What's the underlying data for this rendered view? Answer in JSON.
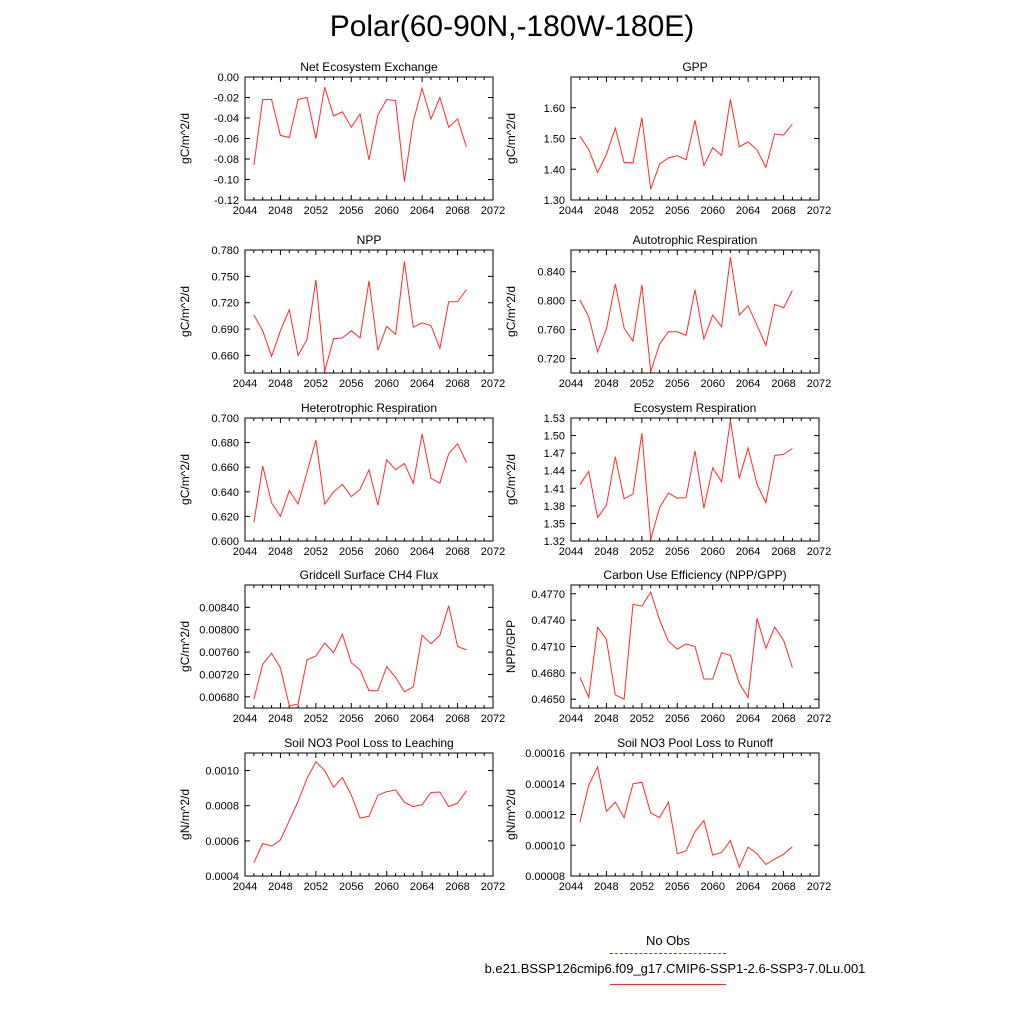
{
  "page": {
    "title": "Polar(60-90N,-180W-180E)"
  },
  "legend": {
    "obs_label": "No Obs",
    "model_label": "b.e21.BSSP126cmip6.f09_g17.CMIP6-SSP1-2.6-SSP3-7.0Lu.001",
    "obs_color": "#4b4bd1",
    "model_color": "#ff2a2a"
  },
  "chart_data": [
    {
      "type": "line",
      "title": "Net Ecosystem Exchange",
      "ylabel": "gC/m^2/d",
      "xlim": [
        2044,
        2072
      ],
      "ylim": [
        -0.12,
        0.0
      ],
      "xticks": [
        "2044",
        "2048",
        "2052",
        "2056",
        "2060",
        "2064",
        "2068",
        "2072"
      ],
      "yticks": [
        {
          "v": 0.0,
          "label": "0.00"
        },
        {
          "v": -0.02,
          "label": "-0.02"
        },
        {
          "v": -0.04,
          "label": "-0.04"
        },
        {
          "v": -0.06,
          "label": "-0.06"
        },
        {
          "v": -0.08,
          "label": "-0.08"
        },
        {
          "v": -0.1,
          "label": "-0.10"
        },
        {
          "v": -0.12,
          "label": "-0.12"
        }
      ],
      "x": [
        2045,
        2046,
        2047,
        2048,
        2049,
        2050,
        2051,
        2052,
        2053,
        2054,
        2055,
        2056,
        2057,
        2058,
        2059,
        2060,
        2061,
        2062,
        2063,
        2064,
        2065,
        2066,
        2067,
        2068,
        2069
      ],
      "y": [
        -0.086,
        -0.022,
        -0.022,
        -0.057,
        -0.059,
        -0.022,
        -0.02,
        -0.06,
        -0.01,
        -0.038,
        -0.034,
        -0.049,
        -0.036,
        -0.081,
        -0.037,
        -0.022,
        -0.023,
        -0.102,
        -0.043,
        -0.011,
        -0.041,
        -0.02,
        -0.049,
        -0.041,
        -0.068
      ]
    },
    {
      "type": "line",
      "title": "GPP",
      "ylabel": "gC/m^2/d",
      "xlim": [
        2044,
        2072
      ],
      "ylim": [
        1.3,
        1.7
      ],
      "xticks": [
        "2044",
        "2048",
        "2052",
        "2056",
        "2060",
        "2064",
        "2068",
        "2072"
      ],
      "yticks": [
        {
          "v": 1.3,
          "label": "1.30"
        },
        {
          "v": 1.4,
          "label": "1.40"
        },
        {
          "v": 1.5,
          "label": "1.50"
        },
        {
          "v": 1.6,
          "label": "1.60"
        }
      ],
      "x": [
        2045,
        2046,
        2047,
        2048,
        2049,
        2050,
        2051,
        2052,
        2053,
        2054,
        2055,
        2056,
        2057,
        2058,
        2059,
        2060,
        2061,
        2062,
        2063,
        2064,
        2065,
        2066,
        2067,
        2068,
        2069
      ],
      "y": [
        1.507,
        1.465,
        1.389,
        1.448,
        1.534,
        1.422,
        1.421,
        1.568,
        1.335,
        1.417,
        1.437,
        1.444,
        1.431,
        1.559,
        1.412,
        1.47,
        1.445,
        1.627,
        1.473,
        1.489,
        1.463,
        1.406,
        1.515,
        1.511,
        1.547
      ]
    },
    {
      "type": "line",
      "title": "NPP",
      "ylabel": "gC/m^2/d",
      "xlim": [
        2044,
        2072
      ],
      "ylim": [
        0.64,
        0.78
      ],
      "xticks": [
        "2044",
        "2048",
        "2052",
        "2056",
        "2060",
        "2064",
        "2068",
        "2072"
      ],
      "yticks": [
        {
          "v": 0.66,
          "label": "0.660"
        },
        {
          "v": 0.69,
          "label": "0.690"
        },
        {
          "v": 0.72,
          "label": "0.720"
        },
        {
          "v": 0.75,
          "label": "0.750"
        },
        {
          "v": 0.78,
          "label": "0.780"
        }
      ],
      "x": [
        2045,
        2046,
        2047,
        2048,
        2049,
        2050,
        2051,
        2052,
        2053,
        2054,
        2055,
        2056,
        2057,
        2058,
        2059,
        2060,
        2061,
        2062,
        2063,
        2064,
        2065,
        2066,
        2067,
        2068,
        2069
      ],
      "y": [
        0.706,
        0.688,
        0.659,
        0.688,
        0.712,
        0.66,
        0.678,
        0.746,
        0.642,
        0.679,
        0.68,
        0.688,
        0.68,
        0.745,
        0.666,
        0.693,
        0.684,
        0.767,
        0.692,
        0.697,
        0.694,
        0.668,
        0.721,
        0.721,
        0.735
      ]
    },
    {
      "type": "line",
      "title": "Autotrophic Respiration",
      "ylabel": "gC/m^2/d",
      "xlim": [
        2044,
        2072
      ],
      "ylim": [
        0.7,
        0.87
      ],
      "xticks": [
        "2044",
        "2048",
        "2052",
        "2056",
        "2060",
        "2064",
        "2068",
        "2072"
      ],
      "yticks": [
        {
          "v": 0.72,
          "label": "0.720"
        },
        {
          "v": 0.76,
          "label": "0.760"
        },
        {
          "v": 0.8,
          "label": "0.800"
        },
        {
          "v": 0.84,
          "label": "0.840"
        }
      ],
      "x": [
        2045,
        2046,
        2047,
        2048,
        2049,
        2050,
        2051,
        2052,
        2053,
        2054,
        2055,
        2056,
        2057,
        2058,
        2059,
        2060,
        2061,
        2062,
        2063,
        2064,
        2065,
        2066,
        2067,
        2068,
        2069
      ],
      "y": [
        0.801,
        0.778,
        0.729,
        0.761,
        0.823,
        0.762,
        0.744,
        0.822,
        0.702,
        0.74,
        0.757,
        0.757,
        0.752,
        0.815,
        0.747,
        0.78,
        0.764,
        0.86,
        0.78,
        0.793,
        0.766,
        0.738,
        0.795,
        0.79,
        0.814
      ]
    },
    {
      "type": "line",
      "title": "Heterotrophic Respiration",
      "ylabel": "gC/m^2/d",
      "xlim": [
        2044,
        2072
      ],
      "ylim": [
        0.6,
        0.7
      ],
      "xticks": [
        "2044",
        "2048",
        "2052",
        "2056",
        "2060",
        "2064",
        "2068",
        "2072"
      ],
      "yticks": [
        {
          "v": 0.6,
          "label": "0.600"
        },
        {
          "v": 0.62,
          "label": "0.620"
        },
        {
          "v": 0.64,
          "label": "0.640"
        },
        {
          "v": 0.66,
          "label": "0.660"
        },
        {
          "v": 0.68,
          "label": "0.680"
        },
        {
          "v": 0.7,
          "label": "0.700"
        }
      ],
      "x": [
        2045,
        2046,
        2047,
        2048,
        2049,
        2050,
        2051,
        2052,
        2053,
        2054,
        2055,
        2056,
        2057,
        2058,
        2059,
        2060,
        2061,
        2062,
        2063,
        2064,
        2065,
        2066,
        2067,
        2068,
        2069
      ],
      "y": [
        0.615,
        0.661,
        0.631,
        0.62,
        0.641,
        0.63,
        0.656,
        0.682,
        0.63,
        0.64,
        0.646,
        0.636,
        0.642,
        0.658,
        0.629,
        0.666,
        0.658,
        0.663,
        0.647,
        0.687,
        0.651,
        0.647,
        0.671,
        0.679,
        0.664
      ]
    },
    {
      "type": "line",
      "title": "Ecosystem Respiration",
      "ylabel": "gC/m^2/d",
      "xlim": [
        2044,
        2072
      ],
      "ylim": [
        1.32,
        1.53
      ],
      "xticks": [
        "2044",
        "2048",
        "2052",
        "2056",
        "2060",
        "2064",
        "2068",
        "2072"
      ],
      "yticks": [
        {
          "v": 1.32,
          "label": "1.32"
        },
        {
          "v": 1.35,
          "label": "1.35"
        },
        {
          "v": 1.38,
          "label": "1.38"
        },
        {
          "v": 1.41,
          "label": "1.41"
        },
        {
          "v": 1.44,
          "label": "1.44"
        },
        {
          "v": 1.47,
          "label": "1.47"
        },
        {
          "v": 1.5,
          "label": "1.50"
        },
        {
          "v": 1.53,
          "label": "1.53"
        }
      ],
      "x": [
        2045,
        2046,
        2047,
        2048,
        2049,
        2050,
        2051,
        2052,
        2053,
        2054,
        2055,
        2056,
        2057,
        2058,
        2059,
        2060,
        2061,
        2062,
        2063,
        2064,
        2065,
        2066,
        2067,
        2068,
        2069
      ],
      "y": [
        1.416,
        1.439,
        1.36,
        1.381,
        1.464,
        1.392,
        1.4,
        1.504,
        1.323,
        1.377,
        1.402,
        1.393,
        1.394,
        1.474,
        1.376,
        1.445,
        1.421,
        1.526,
        1.427,
        1.479,
        1.417,
        1.385,
        1.466,
        1.468,
        1.478
      ]
    },
    {
      "type": "line",
      "title": "Gridcell Surface CH4 Flux",
      "ylabel": "gC/m^2/d",
      "xlim": [
        2044,
        2072
      ],
      "ylim": [
        0.0066,
        0.0088
      ],
      "xticks": [
        "2044",
        "2048",
        "2052",
        "2056",
        "2060",
        "2064",
        "2068",
        "2072"
      ],
      "yticks": [
        {
          "v": 0.0068,
          "label": "0.00680"
        },
        {
          "v": 0.0072,
          "label": "0.00720"
        },
        {
          "v": 0.0076,
          "label": "0.00760"
        },
        {
          "v": 0.008,
          "label": "0.00800"
        },
        {
          "v": 0.0084,
          "label": "0.00840"
        }
      ],
      "x": [
        2045,
        2046,
        2047,
        2048,
        2049,
        2050,
        2051,
        2052,
        2053,
        2054,
        2055,
        2056,
        2057,
        2058,
        2059,
        2060,
        2061,
        2062,
        2063,
        2064,
        2065,
        2066,
        2067,
        2068,
        2069
      ],
      "y": [
        0.00676,
        0.00738,
        0.00758,
        0.00732,
        0.00664,
        0.00667,
        0.00746,
        0.00753,
        0.00776,
        0.00759,
        0.00792,
        0.00741,
        0.00728,
        0.00691,
        0.00691,
        0.00734,
        0.00715,
        0.00689,
        0.00698,
        0.0079,
        0.00775,
        0.0079,
        0.00843,
        0.0077,
        0.00764
      ]
    },
    {
      "type": "line",
      "title": "Carbon Use Efficiency (NPP/GPP)",
      "ylabel": "NPP/GPP",
      "xlim": [
        2044,
        2072
      ],
      "ylim": [
        0.464,
        0.478
      ],
      "xticks": [
        "2044",
        "2048",
        "2052",
        "2056",
        "2060",
        "2064",
        "2068",
        "2072"
      ],
      "yticks": [
        {
          "v": 0.465,
          "label": "0.4650"
        },
        {
          "v": 0.468,
          "label": "0.4680"
        },
        {
          "v": 0.471,
          "label": "0.4710"
        },
        {
          "v": 0.474,
          "label": "0.4740"
        },
        {
          "v": 0.477,
          "label": "0.4770"
        }
      ],
      "x": [
        2045,
        2046,
        2047,
        2048,
        2049,
        2050,
        2051,
        2052,
        2053,
        2054,
        2055,
        2056,
        2057,
        2058,
        2059,
        2060,
        2061,
        2062,
        2063,
        2064,
        2065,
        2066,
        2067,
        2068,
        2069
      ],
      "y": [
        0.4675,
        0.4652,
        0.4732,
        0.4718,
        0.4655,
        0.465,
        0.4758,
        0.4756,
        0.4772,
        0.474,
        0.4716,
        0.4707,
        0.4713,
        0.471,
        0.4673,
        0.4673,
        0.4703,
        0.47,
        0.4668,
        0.4652,
        0.4742,
        0.4708,
        0.4732,
        0.4717,
        0.4686
      ]
    },
    {
      "type": "line",
      "title": "Soil NO3 Pool Loss to Leaching",
      "ylabel": "gN/m^2/d",
      "xlim": [
        2044,
        2072
      ],
      "ylim": [
        0.0004,
        0.0011
      ],
      "xticks": [
        "2044",
        "2048",
        "2052",
        "2056",
        "2060",
        "2064",
        "2068",
        "2072"
      ],
      "yticks": [
        {
          "v": 0.0004,
          "label": "0.0004"
        },
        {
          "v": 0.0006,
          "label": "0.0006"
        },
        {
          "v": 0.0008,
          "label": "0.0008"
        },
        {
          "v": 0.001,
          "label": "0.0010"
        }
      ],
      "x": [
        2045,
        2046,
        2047,
        2048,
        2049,
        2050,
        2051,
        2052,
        2053,
        2054,
        2055,
        2056,
        2057,
        2058,
        2059,
        2060,
        2061,
        2062,
        2063,
        2064,
        2065,
        2066,
        2067,
        2068,
        2069
      ],
      "y": [
        0.000475,
        0.000585,
        0.00057,
        0.000605,
        0.000715,
        0.000825,
        0.000955,
        0.00105,
        0.001,
        0.000905,
        0.00096,
        0.00086,
        0.00073,
        0.00074,
        0.00086,
        0.00088,
        0.00089,
        0.00082,
        0.000795,
        0.000805,
        0.000875,
        0.000878,
        0.000795,
        0.000815,
        0.000885
      ]
    },
    {
      "type": "line",
      "title": "Soil NO3 Pool Loss to Runoff",
      "ylabel": "gN/m^2/d",
      "xlim": [
        2044,
        2072
      ],
      "ylim": [
        8e-05,
        0.00016
      ],
      "xticks": [
        "2044",
        "2048",
        "2052",
        "2056",
        "2060",
        "2064",
        "2068",
        "2072"
      ],
      "yticks": [
        {
          "v": 8e-05,
          "label": "0.00008"
        },
        {
          "v": 0.0001,
          "label": "0.00010"
        },
        {
          "v": 0.00012,
          "label": "0.00012"
        },
        {
          "v": 0.00014,
          "label": "0.00014"
        },
        {
          "v": 0.00016,
          "label": "0.00016"
        }
      ],
      "x": [
        2045,
        2046,
        2047,
        2048,
        2049,
        2050,
        2051,
        2052,
        2053,
        2054,
        2055,
        2056,
        2057,
        2058,
        2059,
        2060,
        2061,
        2062,
        2063,
        2064,
        2065,
        2066,
        2067,
        2068,
        2069
      ],
      "y": [
        0.000115,
        0.000139,
        0.000151,
        0.000122,
        0.000128,
        0.000118,
        0.00014,
        0.000141,
        0.000121,
        0.000118,
        0.000128,
        9.45e-05,
        9.63e-05,
        0.000109,
        0.000116,
        9.36e-05,
        9.53e-05,
        0.000103,
        8.57e-05,
        9.88e-05,
        9.45e-05,
        8.75e-05,
        9.1e-05,
        9.41e-05,
        9.91e-05
      ]
    }
  ]
}
